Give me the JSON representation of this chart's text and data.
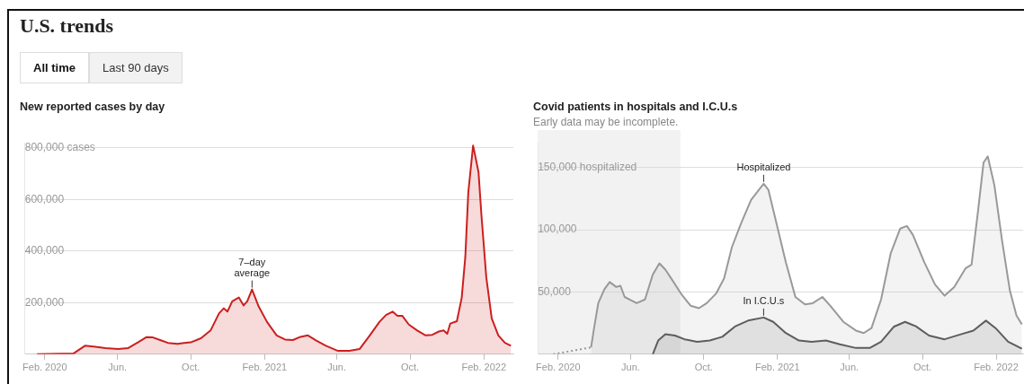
{
  "chart_data": [
    {
      "type": "area",
      "title": "New reported cases by day",
      "annotations": [
        "U.S. trends",
        "All time",
        "Last 90 days",
        {
          "text": "7–day average",
          "x": "2021-01-11",
          "y": 251000
        }
      ],
      "xlim": [
        "2019-12-30",
        "2022-03-22"
      ],
      "xticks": [
        {
          "value": "2020-02-01",
          "label": "Feb. 2020"
        },
        {
          "value": "2020-06-01",
          "label": "Jun."
        },
        {
          "value": "2020-10-01",
          "label": "Oct."
        },
        {
          "value": "2021-02-01",
          "label": "Feb. 2021"
        },
        {
          "value": "2021-06-01",
          "label": "Jun."
        },
        {
          "value": "2021-10-01",
          "label": "Oct."
        },
        {
          "value": "2022-02-01",
          "label": "Feb. 2022"
        }
      ],
      "ylim": [
        0,
        820000
      ],
      "yticks": [
        {
          "value": 200000,
          "label": "200,000"
        },
        {
          "value": 400000,
          "label": "400,000"
        },
        {
          "value": 600000,
          "label": "600,000"
        },
        {
          "value": 800000,
          "label": "800,000 cases"
        }
      ],
      "grid": "y",
      "legend": false,
      "series": [
        {
          "color": "#cc1f1f",
          "x": [
            "2020-01-19",
            "2020-03-20",
            "2020-04-08",
            "2020-04-25",
            "2020-05-12",
            "2020-06-02",
            "2020-06-19",
            "2020-07-05",
            "2020-07-19",
            "2020-07-30",
            "2020-08-13",
            "2020-08-24",
            "2020-09-09",
            "2020-09-20",
            "2020-10-01",
            "2020-10-18",
            "2020-11-03",
            "2020-11-17",
            "2020-11-25",
            "2020-12-01",
            "2020-12-09",
            "2020-12-20",
            "2020-12-28",
            "2021-01-03",
            "2021-01-11",
            "2021-01-22",
            "2021-02-05",
            "2021-02-21",
            "2021-03-07",
            "2021-03-20",
            "2021-03-31",
            "2021-04-14",
            "2021-04-28",
            "2021-05-14",
            "2021-06-03",
            "2021-06-22",
            "2021-07-09",
            "2021-07-26",
            "2021-08-11",
            "2021-08-22",
            "2021-09-02",
            "2021-09-10",
            "2021-09-18",
            "2021-09-29",
            "2021-10-13",
            "2021-10-27",
            "2021-11-07",
            "2021-11-18",
            "2021-11-26",
            "2021-12-02",
            "2021-12-07",
            "2021-12-18",
            "2021-12-26",
            "2022-01-01",
            "2022-01-06",
            "2022-01-14",
            "2022-01-23",
            "2022-01-28",
            "2022-02-05",
            "2022-02-14",
            "2022-02-25",
            "2022-03-08",
            "2022-03-18"
          ],
          "values": [
            0,
            3000,
            33000,
            29000,
            24000,
            20000,
            24000,
            46000,
            66000,
            65000,
            53000,
            44000,
            40000,
            44000,
            46000,
            62000,
            92000,
            158000,
            178000,
            165000,
            205000,
            220000,
            189000,
            205000,
            251000,
            185000,
            125000,
            73000,
            57000,
            55000,
            66000,
            73000,
            53000,
            33000,
            13000,
            13000,
            20000,
            73000,
            125000,
            152000,
            165000,
            149000,
            149000,
            115000,
            92000,
            73000,
            75000,
            88000,
            92000,
            79000,
            119000,
            128000,
            218000,
            376000,
            627000,
            809000,
            706000,
            535000,
            297000,
            139000,
            73000,
            44000,
            33000
          ]
        }
      ]
    },
    {
      "type": "area",
      "title": "Covid patients in hospitals and I.C.U.s",
      "subtitle": "Early data may be incomplete.",
      "annotations": [
        {
          "text": "Hospitalized",
          "x": "2021-01-09",
          "y": 137000
        },
        {
          "text": "In I.C.U.s",
          "x": "2021-01-09",
          "y": 29500
        }
      ],
      "xlim": [
        "2019-12-29",
        "2022-03-18"
      ],
      "xticks": [
        {
          "value": "2020-02-01",
          "label": "Feb. 2020"
        },
        {
          "value": "2020-06-01",
          "label": "Jun."
        },
        {
          "value": "2020-10-01",
          "label": "Oct."
        },
        {
          "value": "2021-02-01",
          "label": "Feb. 2021"
        },
        {
          "value": "2021-06-01",
          "label": "Jun."
        },
        {
          "value": "2021-10-01",
          "label": "Oct."
        },
        {
          "value": "2022-02-01",
          "label": "Feb. 2022"
        }
      ],
      "ylim": [
        0,
        170000
      ],
      "yticks": [
        {
          "value": 50000,
          "label": "50,000"
        },
        {
          "value": 100000,
          "label": "100,000"
        },
        {
          "value": 150000,
          "label": "150,000 hospitalized"
        }
      ],
      "bands": [
        {
          "axis": "x",
          "from": "2019-12-29",
          "to": "2020-08-23",
          "color": "#f2f2f2"
        }
      ],
      "grid": "y",
      "legend": false,
      "series": [
        {
          "type": "line",
          "line_style": "dotted",
          "color": "#999999",
          "x": [
            "2020-01-24",
            "2020-03-27"
          ],
          "values": [
            0,
            5500
          ]
        },
        {
          "color": "#999999",
          "x": [
            "2020-03-27",
            "2020-04-01",
            "2020-04-08",
            "2020-04-18",
            "2020-04-27",
            "2020-05-08",
            "2020-05-15",
            "2020-05-22",
            "2020-06-03",
            "2020-06-11",
            "2020-06-25",
            "2020-07-08",
            "2020-07-19",
            "2020-07-29",
            "2020-08-09",
            "2020-08-25",
            "2020-09-09",
            "2020-09-23",
            "2020-10-06",
            "2020-10-22",
            "2020-11-04",
            "2020-11-17",
            "2020-12-03",
            "2020-12-19",
            "2021-01-01",
            "2021-01-09",
            "2021-01-17",
            "2021-01-30",
            "2021-02-15",
            "2021-03-03",
            "2021-03-19",
            "2021-04-01",
            "2021-04-17",
            "2021-04-30",
            "2021-05-22",
            "2021-06-12",
            "2021-06-25",
            "2021-07-08",
            "2021-07-24",
            "2021-08-09",
            "2021-08-25",
            "2021-09-05",
            "2021-09-15",
            "2021-10-04",
            "2021-10-22",
            "2021-11-07",
            "2021-11-23",
            "2021-12-12",
            "2021-12-22",
            "2022-01-02",
            "2022-01-11",
            "2022-01-18",
            "2022-01-29",
            "2022-02-11",
            "2022-02-24",
            "2022-03-07",
            "2022-03-16"
          ],
          "values": [
            5500,
            21000,
            41000,
            52000,
            58000,
            54000,
            55000,
            46000,
            43000,
            41000,
            44000,
            64000,
            73000,
            68000,
            60000,
            48000,
            39000,
            37000,
            41000,
            49000,
            61000,
            86000,
            106000,
            124000,
            132000,
            137000,
            132000,
            106000,
            74000,
            46000,
            40000,
            41000,
            46000,
            39000,
            26000,
            19000,
            17000,
            21000,
            44000,
            81000,
            101000,
            103000,
            96000,
            74000,
            56000,
            47000,
            54000,
            69000,
            72000,
            116000,
            154000,
            159000,
            136000,
            91000,
            51000,
            31000,
            24000
          ]
        },
        {
          "color": "#555555",
          "x": [
            "2020-07-08",
            "2020-07-17",
            "2020-07-29",
            "2020-08-14",
            "2020-08-30",
            "2020-09-20",
            "2020-10-11",
            "2020-11-01",
            "2020-11-23",
            "2020-12-14",
            "2021-01-09",
            "2021-01-25",
            "2021-02-15",
            "2021-03-09",
            "2021-03-30",
            "2021-04-23",
            "2021-05-16",
            "2021-06-12",
            "2021-07-05",
            "2021-07-24",
            "2021-08-14",
            "2021-09-02",
            "2021-09-20",
            "2021-10-12",
            "2021-11-07",
            "2021-12-04",
            "2021-12-25",
            "2022-01-15",
            "2022-01-31",
            "2022-02-21",
            "2022-03-16"
          ],
          "values": [
            0,
            11000,
            16000,
            15000,
            12000,
            10000,
            11000,
            14000,
            22500,
            27000,
            29500,
            26000,
            17000,
            11000,
            10000,
            11000,
            8000,
            5000,
            5000,
            10000,
            22000,
            26000,
            22500,
            15000,
            12000,
            16000,
            19000,
            27000,
            21000,
            10000,
            4500
          ]
        }
      ]
    }
  ]
}
